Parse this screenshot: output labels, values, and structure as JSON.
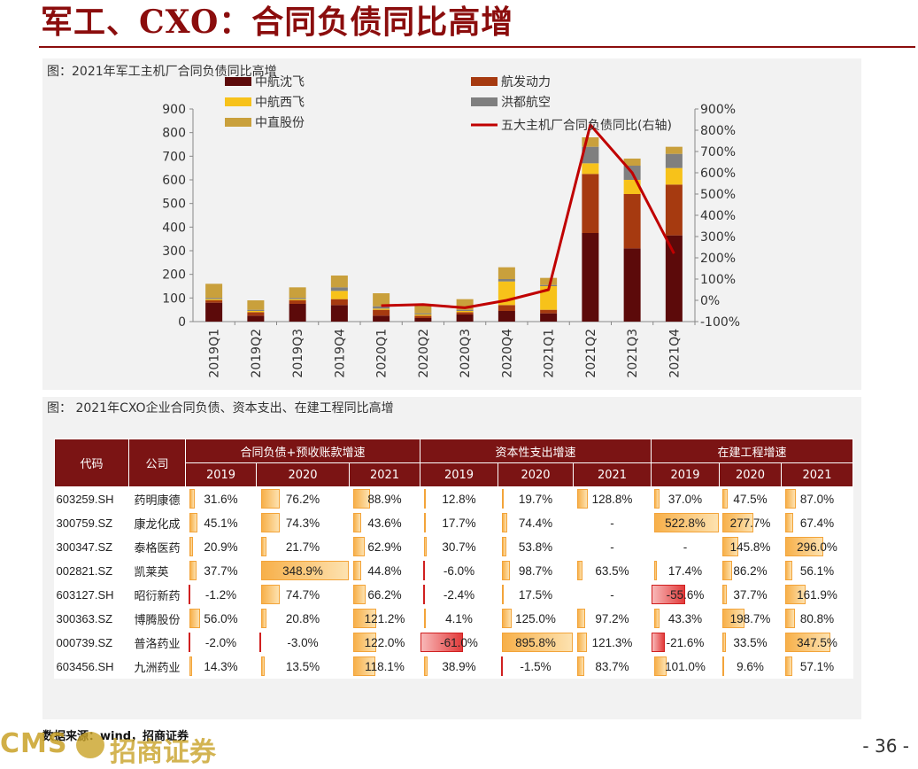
{
  "header": {
    "title": "军工、CXO：合同负债同比高增"
  },
  "chart1_caption": "图：2021年军工主机厂合同负债同比高增",
  "chart_data": [
    {
      "type": "bar",
      "stacked": true,
      "categories": [
        "2019Q1",
        "2019Q2",
        "2019Q3",
        "2019Q4",
        "2020Q1",
        "2020Q2",
        "2020Q3",
        "2020Q4",
        "2021Q1",
        "2021Q2",
        "2021Q3",
        "2021Q4"
      ],
      "series": [
        {
          "name": "中航沈飞",
          "color": "#5C0A0A",
          "values": [
            80,
            25,
            75,
            70,
            25,
            15,
            30,
            45,
            35,
            375,
            310,
            365
          ]
        },
        {
          "name": "航发动力",
          "color": "#A63A10",
          "values": [
            10,
            15,
            15,
            25,
            25,
            10,
            10,
            25,
            15,
            250,
            230,
            215
          ]
        },
        {
          "name": "中航西飞",
          "color": "#F7C21A",
          "values": [
            5,
            5,
            5,
            35,
            5,
            5,
            5,
            100,
            100,
            45,
            60,
            70
          ]
        },
        {
          "name": "洪都航空",
          "color": "#7F7F7F",
          "values": [
            5,
            5,
            5,
            15,
            10,
            5,
            5,
            10,
            5,
            70,
            60,
            60
          ]
        },
        {
          "name": "中直股份",
          "color": "#C9A03C",
          "values": [
            60,
            40,
            45,
            50,
            55,
            40,
            45,
            50,
            30,
            40,
            30,
            30
          ]
        }
      ],
      "line_series": {
        "name": "五大主机厂合同负债同比(右轴)",
        "color": "#C00000",
        "x": [
          "2020Q1",
          "2020Q2",
          "2020Q3",
          "2020Q4",
          "2021Q1",
          "2021Q2",
          "2021Q3",
          "2021Q4"
        ],
        "values": [
          -25,
          -20,
          -35,
          0,
          50,
          825,
          600,
          220
        ]
      },
      "ylim": [
        0,
        900
      ],
      "yticks": [
        "0",
        "100",
        "200",
        "300",
        "400",
        "500",
        "600",
        "700",
        "800",
        "900"
      ],
      "y2lim": [
        -100,
        900
      ],
      "y2ticks": [
        "-100%",
        "0%",
        "100%",
        "200%",
        "300%",
        "400%",
        "500%",
        "600%",
        "700%",
        "800%",
        "900%"
      ]
    },
    {
      "type": "table",
      "caption": "图： 2021年CXO企业合同负债、资本支出、在建工程同比高增",
      "headers": {
        "code": "代码",
        "company": "公司",
        "groups": [
          "合同负债+预收账款增速",
          "资本性支出增速",
          "在建工程增速"
        ],
        "years": [
          "2019",
          "2020",
          "2021"
        ]
      },
      "rows": [
        {
          "code": "603259.SH",
          "name": "药明康德",
          "values": [
            "31.6%",
            "76.2%",
            "88.9%",
            "12.8%",
            "19.7%",
            "128.8%",
            "37.0%",
            "47.5%",
            "87.0%"
          ],
          "nums": [
            31.6,
            76.2,
            88.9,
            12.8,
            19.7,
            128.8,
            37.0,
            47.5,
            87.0
          ]
        },
        {
          "code": "300759.SZ",
          "name": "康龙化成",
          "values": [
            "45.1%",
            "74.3%",
            "43.6%",
            "17.7%",
            "74.4%",
            "-",
            "522.8%",
            "277.7%",
            "67.4%"
          ],
          "nums": [
            45.1,
            74.3,
            43.6,
            17.7,
            74.4,
            null,
            522.8,
            277.7,
            67.4
          ]
        },
        {
          "code": "300347.SZ",
          "name": "泰格医药",
          "values": [
            "20.9%",
            "21.7%",
            "62.9%",
            "30.7%",
            "53.8%",
            "-",
            "-",
            "145.8%",
            "296.0%"
          ],
          "nums": [
            20.9,
            21.7,
            62.9,
            30.7,
            53.8,
            null,
            null,
            145.8,
            296.0
          ]
        },
        {
          "code": "002821.SZ",
          "name": "凯莱英",
          "values": [
            "37.7%",
            "348.9%",
            "44.8%",
            "-6.0%",
            "98.7%",
            "63.5%",
            "17.4%",
            "86.2%",
            "56.1%"
          ],
          "nums": [
            37.7,
            348.9,
            44.8,
            -6.0,
            98.7,
            63.5,
            17.4,
            86.2,
            56.1
          ]
        },
        {
          "code": "603127.SH",
          "name": "昭衍新药",
          "values": [
            "-1.2%",
            "74.7%",
            "66.2%",
            "-2.4%",
            "17.5%",
            "-",
            "-55.6%",
            "37.7%",
            "161.9%"
          ],
          "nums": [
            -1.2,
            74.7,
            66.2,
            -2.4,
            17.5,
            null,
            -55.6,
            37.7,
            161.9
          ]
        },
        {
          "code": "300363.SZ",
          "name": "博腾股份",
          "values": [
            "56.0%",
            "20.8%",
            "121.2%",
            "4.1%",
            "125.0%",
            "97.2%",
            "43.3%",
            "198.7%",
            "80.8%"
          ],
          "nums": [
            56.0,
            20.8,
            121.2,
            4.1,
            125.0,
            97.2,
            43.3,
            198.7,
            80.8
          ]
        },
        {
          "code": "000739.SZ",
          "name": "普洛药业",
          "values": [
            "-2.0%",
            "-3.0%",
            "122.0%",
            "-61.0%",
            "895.8%",
            "121.3%",
            "-21.6%",
            "33.5%",
            "347.5%"
          ],
          "nums": [
            -2.0,
            -3.0,
            122.0,
            -61.0,
            895.8,
            121.3,
            -21.6,
            33.5,
            347.5
          ]
        },
        {
          "code": "603456.SH",
          "name": "九洲药业",
          "values": [
            "14.3%",
            "13.5%",
            "118.1%",
            "38.9%",
            "-1.5%",
            "83.7%",
            "101.0%",
            "9.6%",
            "57.1%"
          ],
          "nums": [
            14.3,
            13.5,
            118.1,
            38.9,
            -1.5,
            83.7,
            101.0,
            9.6,
            57.1
          ]
        }
      ]
    }
  ],
  "footer": {
    "source": "数据来源：wind，招商证券",
    "logo_text": "CMS",
    "logo_cn": "招商证券",
    "page_number": "- 36 -"
  }
}
